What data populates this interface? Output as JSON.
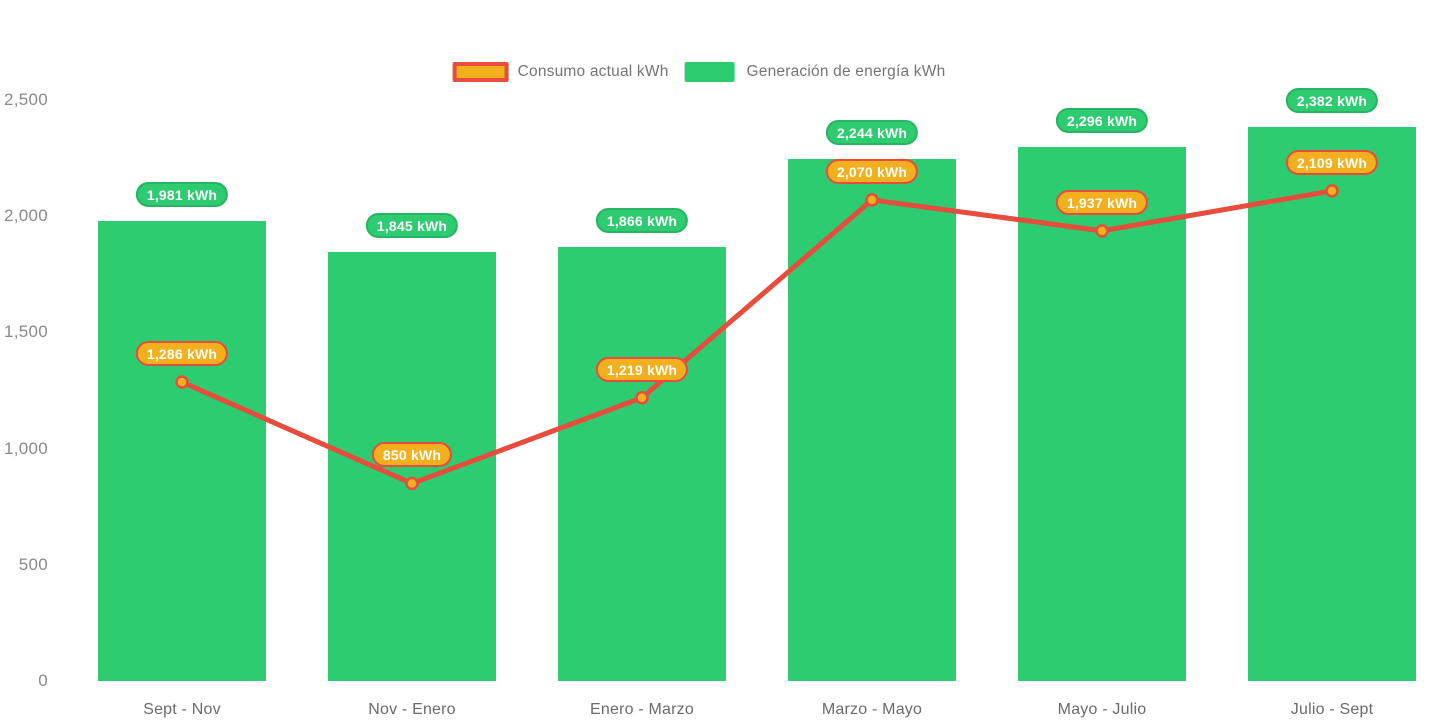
{
  "legend": {
    "items": [
      {
        "id": "consumo",
        "label": "Consumo actual kWh",
        "swatch": "line",
        "swatch_fill": "#f2b01e",
        "swatch_border": "#e74c3c"
      },
      {
        "id": "generacion",
        "label": "Generación de energía kWh",
        "swatch": "bar",
        "swatch_fill": "#2ecc71",
        "swatch_border": ""
      }
    ]
  },
  "chart_data": {
    "type": "bar+line",
    "title": "",
    "categories": [
      "Sept - Nov",
      "Nov - Enero",
      "Enero - Marzo",
      "Marzo - Mayo",
      "Mayo - Julio",
      "Julio - Sept"
    ],
    "series": [
      {
        "name": "Generación de energía kWh",
        "type": "bar",
        "color": "#2ecc71",
        "values": [
          1981,
          1845,
          1866,
          2244,
          2296,
          2382
        ],
        "value_labels": [
          "1,981 kWh",
          "1,845 kWh",
          "1,866 kWh",
          "2,244 kWh",
          "2,296 kWh",
          "2,382 kWh"
        ]
      },
      {
        "name": "Consumo actual kWh",
        "type": "line",
        "color": "#e74c3c",
        "marker_fill": "#f2b01e",
        "marker_stroke": "#e74c3c",
        "values": [
          1286,
          850,
          1219,
          2070,
          1937,
          2109
        ],
        "value_labels": [
          "1,286 kWh",
          "850 kWh",
          "1,219 kWh",
          "2,070 kWh",
          "1,937 kWh",
          "2,109 kWh"
        ]
      }
    ],
    "ylim": [
      0,
      2500
    ],
    "yticks": [
      {
        "value": 0,
        "label": "0"
      },
      {
        "value": 500,
        "label": "500"
      },
      {
        "value": 1000,
        "label": "1,000"
      },
      {
        "value": 1500,
        "label": "1,500"
      },
      {
        "value": 2000,
        "label": "2,000"
      },
      {
        "value": 2500,
        "label": "2,500"
      }
    ],
    "grid": false,
    "legend_position": "top-center",
    "background": "#ffffff"
  }
}
